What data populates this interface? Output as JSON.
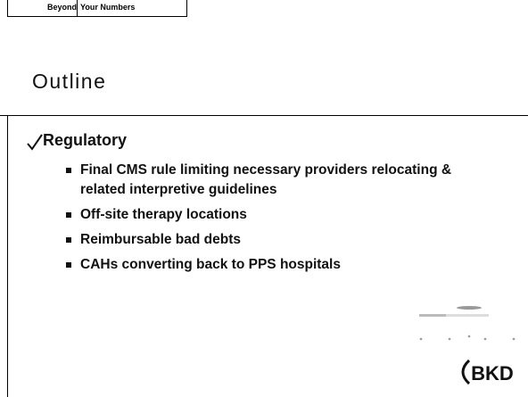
{
  "header": {
    "left": "Beyond",
    "right": "Your Numbers"
  },
  "title": "Outline",
  "bullet": "Regulatory",
  "subitems": [
    "Final CMS rule limiting necessary providers relocating & related interpretive guidelines",
    "Off-site therapy locations",
    "Reimbursable bad debts",
    "CAHs converting back to PPS hospitals"
  ],
  "logo": "BKD"
}
